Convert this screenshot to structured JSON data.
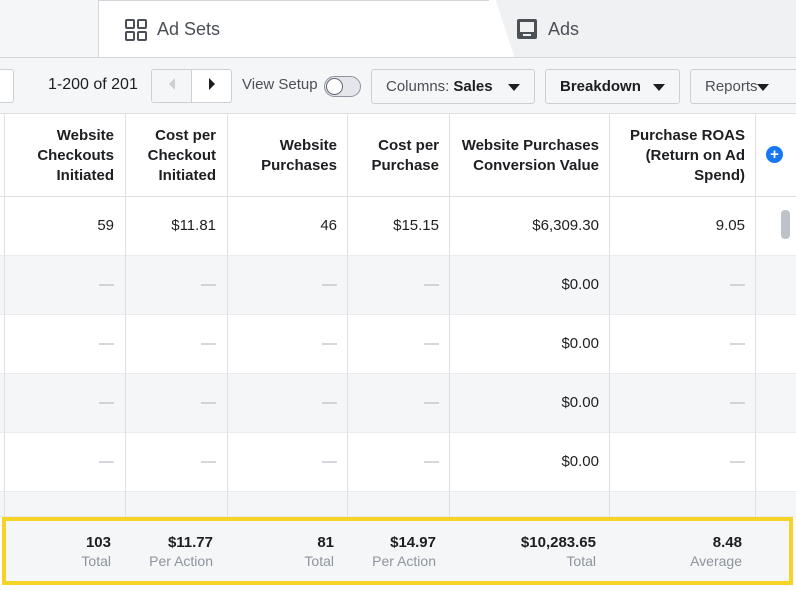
{
  "tabs": {
    "ad_sets": {
      "label": "Ad Sets",
      "icon": "grid-icon"
    },
    "ads": {
      "label": "Ads",
      "icon": "ad-monitor-icon"
    }
  },
  "toolbar": {
    "page_range": "1-200 of 201",
    "view_setup_label": "View Setup",
    "columns_label": "Columns:",
    "columns_value": "Sales",
    "breakdown_label": "Breakdown",
    "reports_label": "Reports"
  },
  "table": {
    "headers": [
      [
        "Website",
        "Checkouts",
        "Initiated"
      ],
      [
        "Cost per",
        "Checkout",
        "Initiated"
      ],
      [
        "Website",
        "Purchases"
      ],
      [
        "Cost per",
        "Purchase"
      ],
      [
        "Website Purchases",
        "Conversion Value"
      ],
      [
        "Purchase ROAS",
        "(Return on Ad",
        "Spend)"
      ]
    ],
    "rows": [
      [
        "59",
        "$11.81",
        "46",
        "$15.15",
        "$6,309.30",
        "9.05"
      ],
      [
        "—",
        "—",
        "—",
        "—",
        "$0.00",
        "—"
      ],
      [
        "—",
        "—",
        "—",
        "—",
        "$0.00",
        "—"
      ],
      [
        "—",
        "—",
        "—",
        "—",
        "$0.00",
        "—"
      ],
      [
        "—",
        "—",
        "—",
        "—",
        "$0.00",
        "—"
      ]
    ],
    "totals": [
      {
        "value": "103",
        "sub": "Total"
      },
      {
        "value": "$11.77",
        "sub": "Per Action"
      },
      {
        "value": "81",
        "sub": "Total"
      },
      {
        "value": "$14.97",
        "sub": "Per Action"
      },
      {
        "value": "$10,283.65",
        "sub": "Total"
      },
      {
        "value": "8.48",
        "sub": "Average"
      }
    ]
  },
  "colors": {
    "accent": "#1877f2",
    "highlight": "#f5d327"
  }
}
